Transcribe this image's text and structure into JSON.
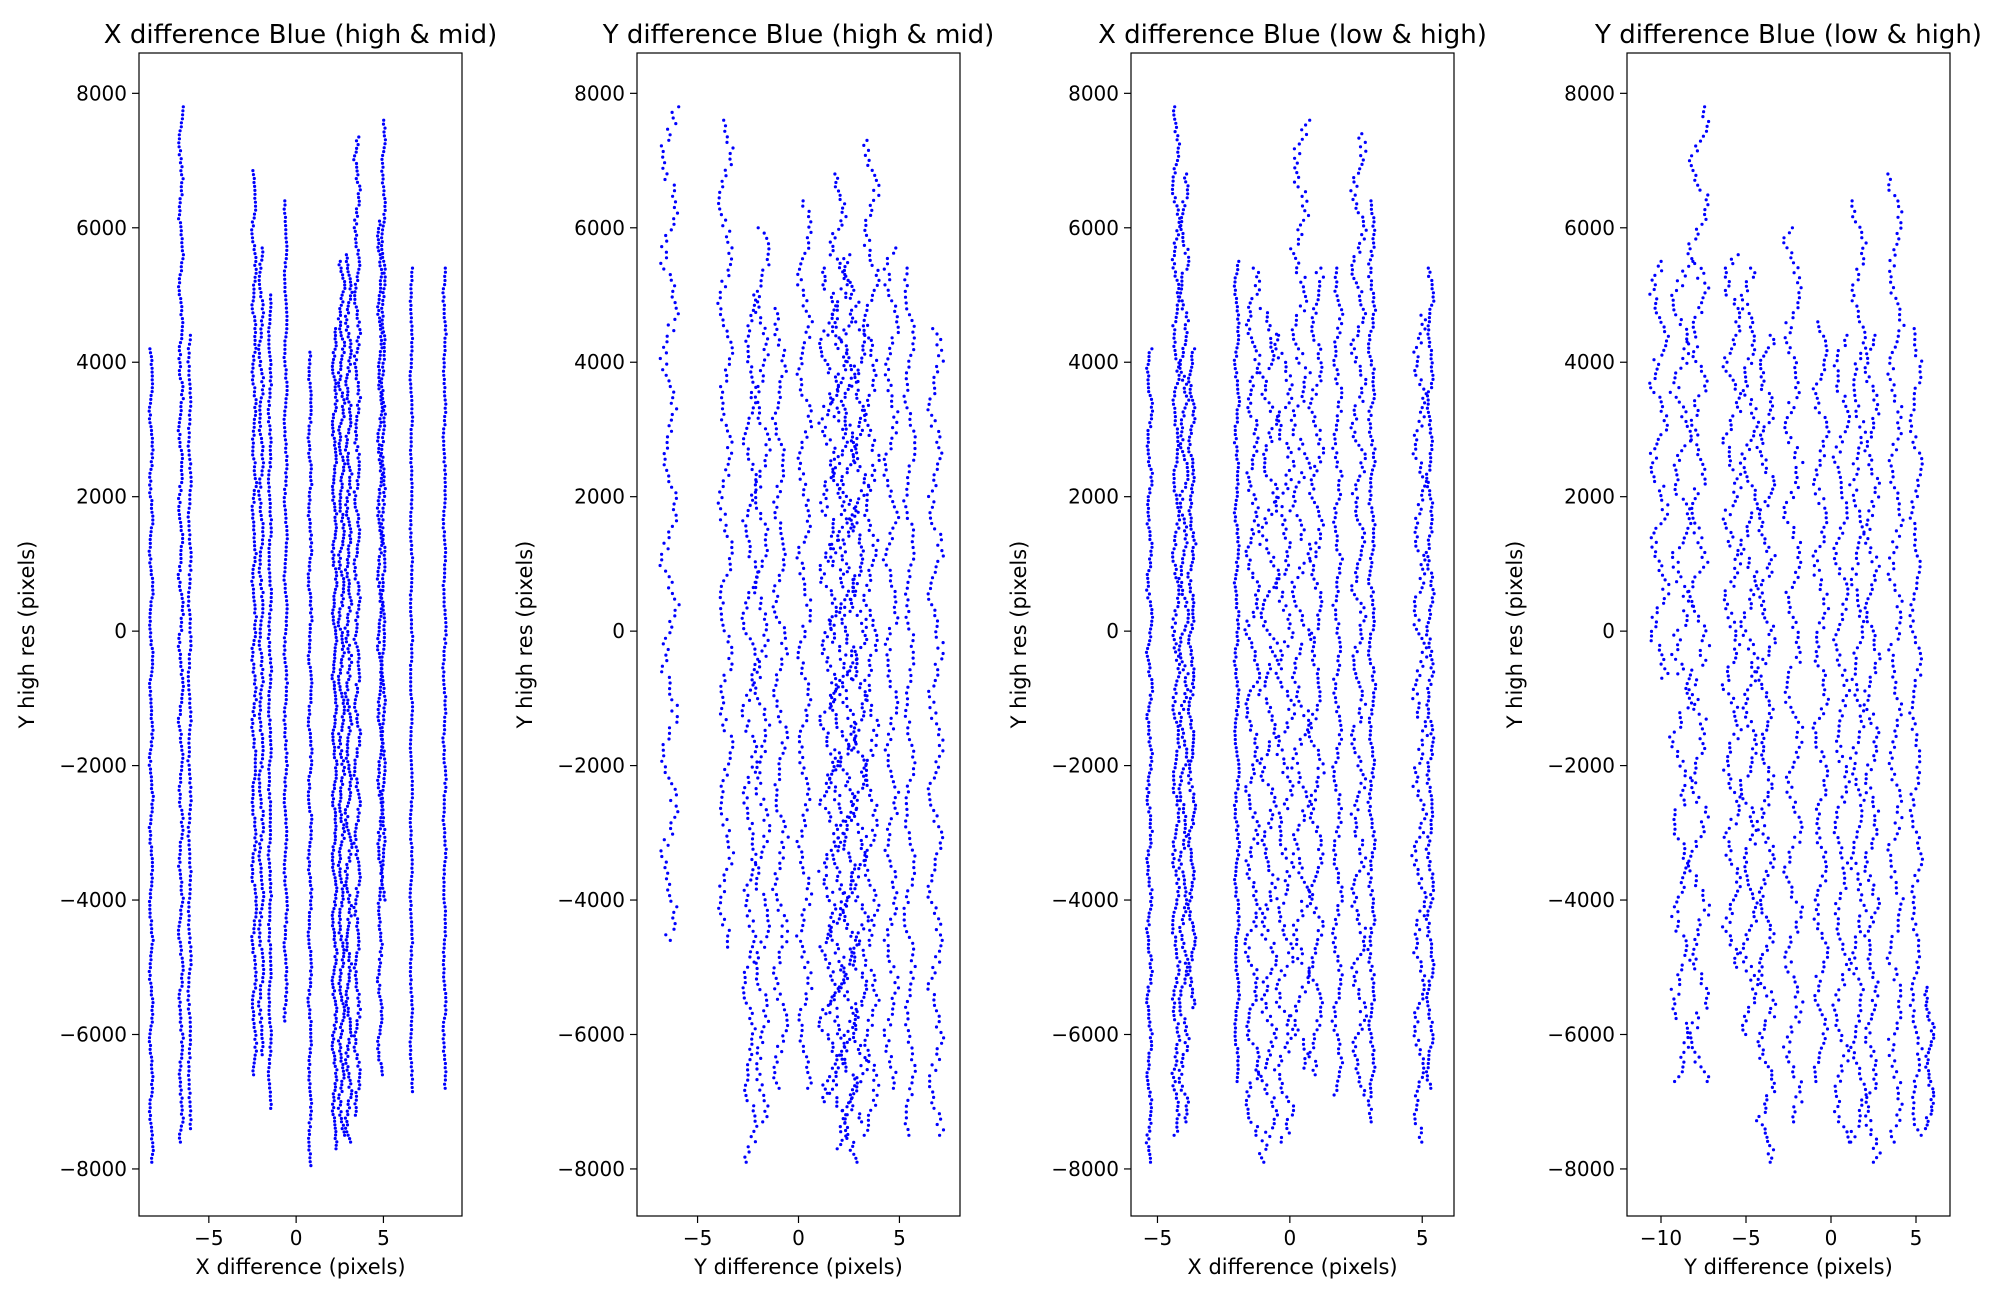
{
  "chart_data": [
    {
      "type": "scatter",
      "title": "X difference Blue (high & mid)",
      "xlabel": "X difference (pixels)",
      "ylabel": "Y high res (pixels)",
      "xlim": [
        -9,
        9.5
      ],
      "ylim": [
        -8700,
        8600
      ],
      "xticks": [
        -5,
        0,
        5
      ],
      "yticks": [
        -8000,
        -6000,
        -4000,
        -2000,
        0,
        2000,
        4000,
        6000,
        8000
      ],
      "point_color": "#0000ff",
      "series": [
        {
          "columns": [
            {
              "x": -8.3,
              "dx": 0.12,
              "y": [
                -7900,
                4200
              ],
              "n": 210
            },
            {
              "x": -6.6,
              "dx": 0.15,
              "y": [
                -7600,
                7800
              ],
              "n": 260
            },
            {
              "x": -6.1,
              "dx": 0.1,
              "y": [
                -7400,
                4400
              ],
              "n": 180
            },
            {
              "x": -2.4,
              "dx": 0.15,
              "y": [
                -6600,
                6850
              ],
              "n": 230
            },
            {
              "x": -2.0,
              "dx": 0.15,
              "y": [
                -6300,
                5700
              ],
              "n": 200
            },
            {
              "x": -1.5,
              "dx": 0.1,
              "y": [
                -7100,
                5000
              ],
              "n": 200
            },
            {
              "x": -0.6,
              "dx": 0.1,
              "y": [
                -5800,
                6400
              ],
              "n": 200
            },
            {
              "x": 0.8,
              "dx": 0.12,
              "y": [
                -7950,
                4150
              ],
              "n": 210
            },
            {
              "x": 2.2,
              "dx": 0.15,
              "y": [
                -7700,
                4500
              ],
              "n": 240
            },
            {
              "x": 2.6,
              "dx": 0.2,
              "y": [
                -7500,
                5500
              ],
              "n": 260
            },
            {
              "x": 3.0,
              "dx": 0.2,
              "y": [
                -7600,
                5600
              ],
              "n": 260
            },
            {
              "x": 3.5,
              "dx": 0.2,
              "y": [
                -7200,
                7350
              ],
              "n": 260
            },
            {
              "x": 4.8,
              "dx": 0.15,
              "y": [
                -6600,
                6100
              ],
              "n": 230
            },
            {
              "x": 5.0,
              "dx": 0.12,
              "y": [
                -4000,
                7600
              ],
              "n": 200
            },
            {
              "x": 6.6,
              "dx": 0.08,
              "y": [
                -6850,
                5400
              ],
              "n": 200
            },
            {
              "x": 8.5,
              "dx": 0.1,
              "y": [
                -6800,
                5400
              ],
              "n": 200
            }
          ]
        }
      ]
    },
    {
      "type": "scatter",
      "title": "Y difference Blue (high & mid)",
      "xlabel": "Y difference (pixels)",
      "ylabel": "Y high res (pixels)",
      "xlim": [
        -8,
        8
      ],
      "ylim": [
        -8700,
        8600
      ],
      "xticks": [
        -5,
        0,
        5
      ],
      "yticks": [
        -8000,
        -6000,
        -4000,
        -2000,
        0,
        2000,
        4000,
        6000,
        8000
      ],
      "point_color": "#0000ff",
      "series": [
        {
          "columns": [
            {
              "x": -6.4,
              "dx": 0.5,
              "y": [
                -4600,
                7800
              ],
              "n": 150
            },
            {
              "x": -3.6,
              "dx": 0.4,
              "y": [
                -4700,
                7600
              ],
              "n": 150
            },
            {
              "x": -2.4,
              "dx": 0.4,
              "y": [
                -7900,
                5000
              ],
              "n": 170
            },
            {
              "x": -1.8,
              "dx": 0.4,
              "y": [
                -7300,
                6000
              ],
              "n": 170
            },
            {
              "x": -0.9,
              "dx": 0.4,
              "y": [
                -6800,
                4800
              ],
              "n": 150
            },
            {
              "x": 0.3,
              "dx": 0.4,
              "y": [
                -6800,
                6400
              ],
              "n": 170
            },
            {
              "x": 1.5,
              "dx": 0.5,
              "y": [
                -7000,
                5400
              ],
              "n": 200
            },
            {
              "x": 2.0,
              "dx": 0.5,
              "y": [
                -7700,
                6800
              ],
              "n": 230
            },
            {
              "x": 2.5,
              "dx": 0.5,
              "y": [
                -7900,
                5600
              ],
              "n": 230
            },
            {
              "x": 3.0,
              "dx": 0.5,
              "y": [
                -7300,
                4600
              ],
              "n": 200
            },
            {
              "x": 3.6,
              "dx": 0.4,
              "y": [
                -7500,
                7300
              ],
              "n": 200
            },
            {
              "x": 4.6,
              "dx": 0.4,
              "y": [
                -6800,
                5700
              ],
              "n": 160
            },
            {
              "x": 5.5,
              "dx": 0.3,
              "y": [
                -7500,
                5400
              ],
              "n": 150
            },
            {
              "x": 6.8,
              "dx": 0.4,
              "y": [
                -7500,
                4500
              ],
              "n": 150
            }
          ]
        }
      ]
    },
    {
      "type": "scatter",
      "title": "X difference Blue (low & high)",
      "xlabel": "X difference (pixels)",
      "ylabel": "Y high res (pixels)",
      "xlim": [
        -6,
        6.2
      ],
      "ylim": [
        -8700,
        8600
      ],
      "xticks": [
        -5,
        0,
        5
      ],
      "yticks": [
        -8000,
        -6000,
        -4000,
        -2000,
        0,
        2000,
        4000,
        6000,
        8000
      ],
      "point_color": "#0000ff",
      "series": [
        {
          "columns": [
            {
              "x": -5.3,
              "dx": 0.12,
              "y": [
                -7900,
                4200
              ],
              "n": 210
            },
            {
              "x": -4.3,
              "dx": 0.15,
              "y": [
                -7500,
                7800
              ],
              "n": 250
            },
            {
              "x": -4.0,
              "dx": 0.2,
              "y": [
                -7300,
                6800
              ],
              "n": 240
            },
            {
              "x": -3.7,
              "dx": 0.15,
              "y": [
                -5600,
                4200
              ],
              "n": 180
            },
            {
              "x": -2.0,
              "dx": 0.1,
              "y": [
                -6700,
                5500
              ],
              "n": 200
            },
            {
              "x": -1.4,
              "dx": 0.3,
              "y": [
                -7500,
                5400
              ],
              "n": 200
            },
            {
              "x": -0.8,
              "dx": 0.4,
              "y": [
                -7900,
                4800
              ],
              "n": 200
            },
            {
              "x": -0.2,
              "dx": 0.4,
              "y": [
                -7600,
                4400
              ],
              "n": 180
            },
            {
              "x": 0.4,
              "dx": 0.4,
              "y": [
                -6500,
                7600
              ],
              "n": 200
            },
            {
              "x": 1.0,
              "dx": 0.3,
              "y": [
                -6600,
                5400
              ],
              "n": 180
            },
            {
              "x": 1.8,
              "dx": 0.2,
              "y": [
                -6900,
                5400
              ],
              "n": 180
            },
            {
              "x": 2.6,
              "dx": 0.3,
              "y": [
                -6900,
                7400
              ],
              "n": 220
            },
            {
              "x": 3.1,
              "dx": 0.15,
              "y": [
                -7300,
                6400
              ],
              "n": 220
            },
            {
              "x": 4.9,
              "dx": 0.3,
              "y": [
                -7600,
                4700
              ],
              "n": 180
            },
            {
              "x": 5.3,
              "dx": 0.15,
              "y": [
                -6800,
                5400
              ],
              "n": 200
            }
          ]
        }
      ]
    },
    {
      "type": "scatter",
      "title": "Y difference Blue (low & high)",
      "xlabel": "Y difference (pixels)",
      "ylabel": "Y high res (pixels)",
      "xlim": [
        -12,
        7
      ],
      "ylim": [
        -8700,
        8600
      ],
      "xticks": [
        -10,
        -5,
        0,
        5
      ],
      "yticks": [
        -8000,
        -6000,
        -4000,
        -2000,
        0,
        2000,
        4000,
        6000,
        8000
      ],
      "point_color": "#0000ff",
      "series": [
        {
          "columns": [
            {
              "x": -10.1,
              "dx": 0.6,
              "y": [
                -700,
                5500
              ],
              "n": 90
            },
            {
              "x": -8.8,
              "dx": 0.7,
              "y": [
                -6700,
                5500
              ],
              "n": 170
            },
            {
              "x": -7.8,
              "dx": 0.7,
              "y": [
                -6700,
                7800
              ],
              "n": 200
            },
            {
              "x": -5.8,
              "dx": 0.6,
              "y": [
                -5000,
                5600
              ],
              "n": 160
            },
            {
              "x": -4.8,
              "dx": 0.6,
              "y": [
                -6000,
                5400
              ],
              "n": 170
            },
            {
              "x": -3.8,
              "dx": 0.6,
              "y": [
                -7900,
                4400
              ],
              "n": 200
            },
            {
              "x": -2.2,
              "dx": 0.6,
              "y": [
                -7300,
                6000
              ],
              "n": 180
            },
            {
              "x": -0.6,
              "dx": 0.5,
              "y": [
                -6700,
                4600
              ],
              "n": 160
            },
            {
              "x": 0.6,
              "dx": 0.5,
              "y": [
                -7600,
                4400
              ],
              "n": 160
            },
            {
              "x": 1.6,
              "dx": 0.5,
              "y": [
                -7600,
                6400
              ],
              "n": 180
            },
            {
              "x": 2.4,
              "dx": 0.5,
              "y": [
                -7900,
                4400
              ],
              "n": 180
            },
            {
              "x": 3.8,
              "dx": 0.5,
              "y": [
                -7600,
                6800
              ],
              "n": 180
            },
            {
              "x": 5.0,
              "dx": 0.4,
              "y": [
                -7500,
                4500
              ],
              "n": 150
            },
            {
              "x": 5.8,
              "dx": 0.3,
              "y": [
                -7400,
                -5300
              ],
              "n": 40
            }
          ]
        }
      ]
    }
  ]
}
